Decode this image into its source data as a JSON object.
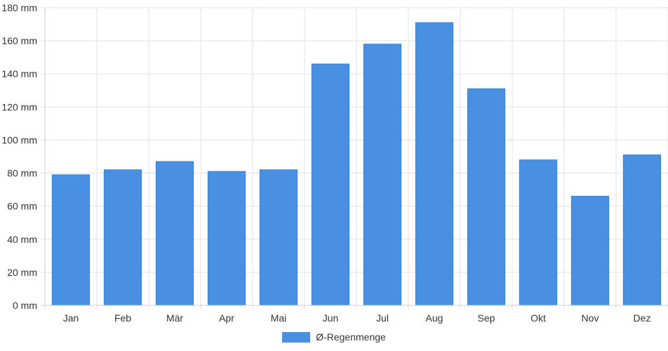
{
  "chart_data": {
    "type": "bar",
    "categories": [
      "Jan",
      "Feb",
      "Mär",
      "Apr",
      "Mai",
      "Jun",
      "Jul",
      "Aug",
      "Sep",
      "Okt",
      "Nov",
      "Dez"
    ],
    "series": [
      {
        "name": "Ø-Regenmenge",
        "values": [
          79,
          82,
          87,
          81,
          82,
          146,
          158,
          171,
          131,
          88,
          66,
          91
        ],
        "color": "#4a90e2"
      }
    ],
    "y_unit_suffix": " mm",
    "ylim": [
      0,
      180
    ],
    "ytick_step": 20,
    "ytick_labels": [
      "0 mm",
      "20 mm",
      "40 mm",
      "60 mm",
      "80 mm",
      "100 mm",
      "120 mm",
      "140 mm",
      "160 mm",
      "180 mm"
    ],
    "grid": true,
    "legend_position": "bottom"
  }
}
